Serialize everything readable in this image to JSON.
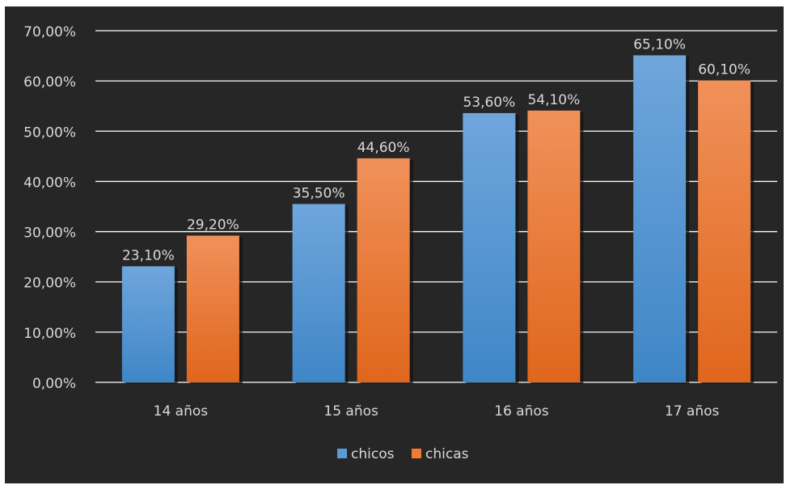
{
  "chart_data": {
    "type": "bar",
    "categories": [
      "14 años",
      "15 años",
      "16 años",
      "17 años"
    ],
    "series": [
      {
        "name": "chicos",
        "color": "#5b9bd5",
        "values": [
          23.1,
          35.5,
          53.6,
          65.1
        ],
        "labels": [
          "23,10%",
          "35,50%",
          "53,60%",
          "65,10%"
        ]
      },
      {
        "name": "chicas",
        "color": "#ed7d31",
        "values": [
          29.2,
          44.6,
          54.1,
          60.1
        ],
        "labels": [
          "29,20%",
          "44,60%",
          "54,10%",
          "60,10%"
        ]
      }
    ],
    "ylim": [
      0,
      70
    ],
    "yticks": [
      0,
      10,
      20,
      30,
      40,
      50,
      60,
      70
    ],
    "ytick_labels": [
      "0,00%",
      "10,00%",
      "20,00%",
      "30,00%",
      "40,00%",
      "50,00%",
      "60,00%",
      "70,00%"
    ],
    "grid": true,
    "legend_position": "bottom",
    "background": "#262626",
    "text_color": "#d9d9d9",
    "grid_color": "#ffffff"
  }
}
